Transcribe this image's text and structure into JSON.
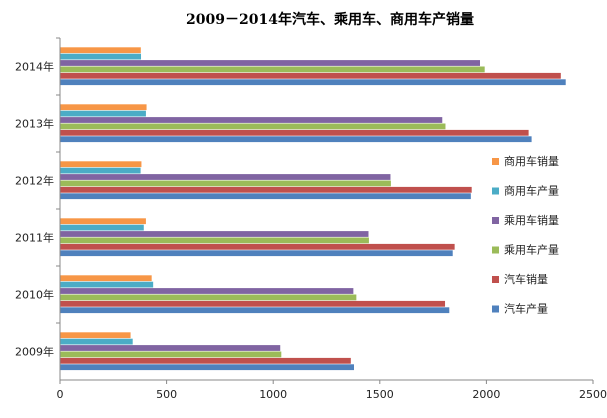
{
  "chart_data": {
    "type": "bar",
    "orientation": "horizontal",
    "title": "2009－2014年汽车、乘用车、商用车产销量",
    "xlabel": "",
    "ylabel": "",
    "xlim": [
      0,
      2500
    ],
    "xticks": [
      "0",
      "500",
      "1000",
      "1500",
      "2000",
      "2500"
    ],
    "categories": [
      "2009年",
      "2010年",
      "2011年",
      "2012年",
      "2013年",
      "2014年"
    ],
    "legend_position": "right",
    "grid": false,
    "series": [
      {
        "name": "汽车产量",
        "color": "#4F81BD",
        "values": [
          1379,
          1826,
          1842,
          1927,
          2212,
          2372
        ]
      },
      {
        "name": "汽车销量",
        "color": "#C0504D",
        "values": [
          1364,
          1806,
          1851,
          1931,
          2198,
          2349
        ]
      },
      {
        "name": "乘用车产量",
        "color": "#9BBB59",
        "values": [
          1038,
          1390,
          1449,
          1552,
          1808,
          1992
        ]
      },
      {
        "name": "乘用车销量",
        "color": "#8064A2",
        "values": [
          1033,
          1376,
          1447,
          1550,
          1793,
          1970
        ]
      },
      {
        "name": "商用车产量",
        "color": "#4BACC6",
        "values": [
          341,
          437,
          393,
          378,
          403,
          380
        ]
      },
      {
        "name": "商用车销量",
        "color": "#F79646",
        "values": [
          331,
          430,
          403,
          382,
          406,
          379
        ]
      }
    ]
  }
}
